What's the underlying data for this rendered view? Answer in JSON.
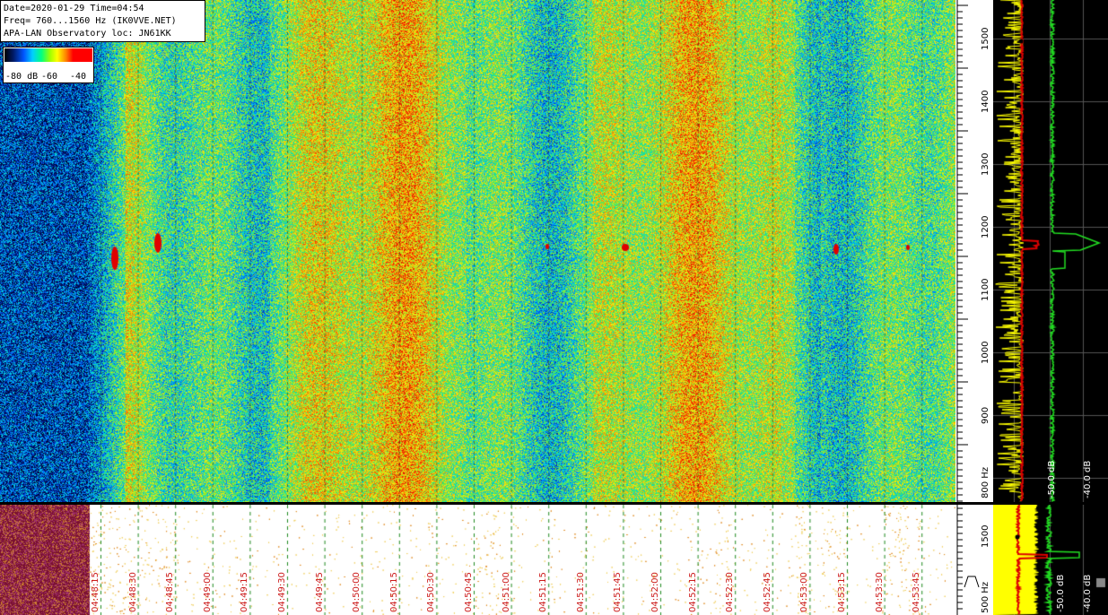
{
  "info": {
    "line1": "Date=2020-01-29 Time=04:54",
    "line2": "Freq= 760...1560 Hz (IK0VVE.NET)",
    "line3": "APA-LAN Observatory loc: JN61KK"
  },
  "colorbar": {
    "label_low": "-80 dB",
    "label_mid": "-60",
    "label_high": "-40"
  },
  "freq_axis": {
    "ticks": [
      "1500",
      "1400",
      "1300",
      "1200",
      "1100",
      "1000",
      "900",
      "800 Hz"
    ]
  },
  "freq_axis_lower": {
    "ticks": [
      "1500",
      "500 Hz"
    ]
  },
  "spectrum_panel": {
    "db_labels": [
      "-50.0 dB",
      "-40.0 dB"
    ]
  },
  "spectrum_panel_lower": {
    "db_labels": [
      "-50.0 dB",
      "-40.0 dB"
    ]
  },
  "time_axis": {
    "labels": [
      "04:48:15",
      "04:48:30",
      "04:48:45",
      "04:49:00",
      "04:49:15",
      "04:49:30",
      "04:49:45",
      "04:50:00",
      "04:50:15",
      "04:50:30",
      "04:50:45",
      "04:51:00",
      "04:51:15",
      "04:51:30",
      "04:51:45",
      "04:52:00",
      "04:52:15",
      "04:52:30",
      "04:52:45",
      "04:53:00",
      "04:53:15",
      "04:53:30",
      "04:53:45"
    ]
  },
  "colors": {
    "background": "#ffffff",
    "spectrum_bg": "#000000",
    "time_label": "#cc1a1a",
    "trace_yellow": "#ffff00",
    "trace_green": "#22dd22",
    "trace_red": "#dd0000"
  }
}
